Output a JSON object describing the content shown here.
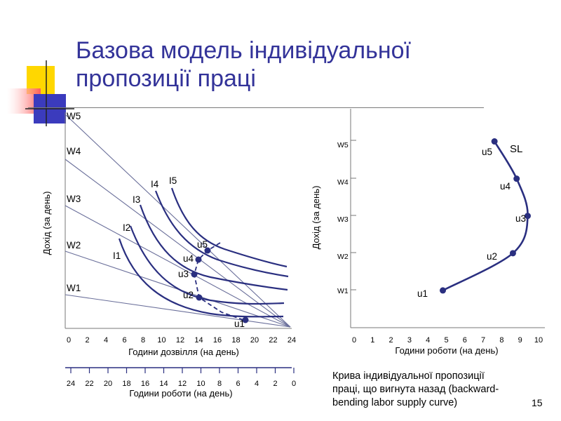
{
  "title": {
    "line1": "Базова модель індивідуальної",
    "line2": "пропозиції праці"
  },
  "left_chart": {
    "ylabel": "Дохід (за день)",
    "wage_labels": [
      "W1",
      "W2",
      "W3",
      "W4",
      "W5"
    ],
    "curve_labels": [
      "I1",
      "I2",
      "I3",
      "I4",
      "I5"
    ],
    "point_labels": [
      "u1",
      "u2",
      "u3",
      "u4",
      "u5"
    ],
    "leisure_ticks": [
      "0",
      "2",
      "4",
      "6",
      "8",
      "10",
      "12",
      "14",
      "16",
      "18",
      "20",
      "22",
      "24"
    ],
    "leisure_label": "Години дозвілля (на день)",
    "work_ticks": [
      "24",
      "22",
      "20",
      "18",
      "16",
      "14",
      "12",
      "10",
      "8",
      "6",
      "4",
      "2",
      "0"
    ],
    "work_label": "Години роботи (на день)"
  },
  "right_chart": {
    "ylabel": "Дохід (за день)",
    "wage_labels": [
      "W1",
      "W2",
      "W3",
      "W4",
      "W5"
    ],
    "ticks": [
      "0",
      "1",
      "2",
      "3",
      "4",
      "5",
      "6",
      "7",
      "8",
      "9",
      "10"
    ],
    "xlabel": "Години роботи (на день)",
    "curve_label": "SL",
    "point_labels": [
      "u1",
      "u2",
      "u3",
      "u4",
      "u5"
    ]
  },
  "chart_data": {
    "type": "line",
    "x": [
      5,
      8.8,
      9.6,
      9,
      7.8
    ],
    "series": [
      {
        "name": "SL",
        "values": [
          1,
          2,
          3,
          4,
          5
        ]
      }
    ],
    "xlabel": "Години роботи (на день)",
    "ylabel": "Дохід (за день)",
    "xlim": [
      0,
      10
    ],
    "ylim": [
      0,
      5.5
    ]
  },
  "caption": {
    "line1": "Крива індивідуальної пропозиції",
    "line2": "праці, що вигнута назад (backward-",
    "line3": "bending labor supply curve)"
  },
  "page_number": "15",
  "colors": {
    "title": "#333399",
    "curve": "#2a2f80",
    "budget_line": "#6a6f9a",
    "accent_yellow": "#ffd700",
    "accent_red": "#ff6666",
    "accent_blue": "#3b3bbd"
  }
}
